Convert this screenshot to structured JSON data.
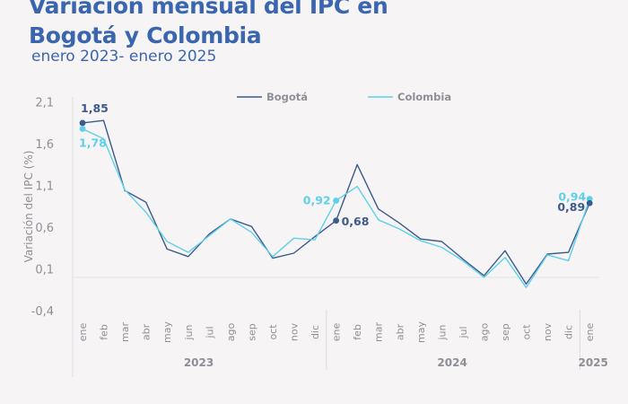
{
  "header": {
    "title_line1": "Variación mensual del IPC en",
    "title_line2": "Bogotá y Colombia",
    "subtitle": "enero 2023- enero 2025"
  },
  "colors": {
    "title": "#3a66b0",
    "bogota": "#3c5a8c",
    "colombia": "#5fd0ea",
    "axis_text": "#8e8f95"
  },
  "chart_data": {
    "type": "line",
    "title": "Variación mensual del IPC en Bogotá y Colombia",
    "subtitle": "enero 2023- enero 2025",
    "xlabel": "",
    "ylabel": "Variación del IPC (%)",
    "ylim": [
      -0.4,
      2.1
    ],
    "yticks": [
      "2,1",
      "1,6",
      "1,1",
      "0,6",
      "0,1",
      "-0,4"
    ],
    "ytick_values": [
      2.1,
      1.6,
      1.1,
      0.6,
      0.1,
      -0.4
    ],
    "grid": false,
    "legend_position": "top",
    "categories": [
      "ene",
      "feb",
      "mar",
      "abr",
      "may",
      "jun",
      "jul",
      "ago",
      "sep",
      "oct",
      "nov",
      "dic",
      "ene",
      "feb",
      "mar",
      "abr",
      "may",
      "jun",
      "jul",
      "ago",
      "sep",
      "oct",
      "nov",
      "dic",
      "ene"
    ],
    "year_groups": [
      {
        "label": "2023",
        "start": 0,
        "end": 11
      },
      {
        "label": "2024",
        "start": 12,
        "end": 23
      },
      {
        "label": "2025",
        "start": 24,
        "end": 24
      }
    ],
    "series": [
      {
        "name": "Bogotá",
        "color": "#3c5a8c",
        "values": [
          1.85,
          1.88,
          1.04,
          0.9,
          0.34,
          0.25,
          0.52,
          0.7,
          0.61,
          0.23,
          0.29,
          0.49,
          0.68,
          1.35,
          0.82,
          0.65,
          0.46,
          0.43,
          0.22,
          0.02,
          0.32,
          -0.08,
          0.28,
          0.3,
          0.89
        ]
      },
      {
        "name": "Colombia",
        "color": "#5fd0ea",
        "values": [
          1.78,
          1.66,
          1.05,
          0.78,
          0.43,
          0.3,
          0.5,
          0.7,
          0.54,
          0.25,
          0.47,
          0.45,
          0.92,
          1.09,
          0.69,
          0.58,
          0.44,
          0.36,
          0.2,
          0.0,
          0.24,
          -0.12,
          0.27,
          0.2,
          0.94
        ]
      }
    ],
    "annotations": [
      {
        "series": "Bogotá",
        "index": 0,
        "text": "1,85"
      },
      {
        "series": "Colombia",
        "index": 0,
        "text": "1,78"
      },
      {
        "series": "Colombia",
        "index": 12,
        "text": "0,92"
      },
      {
        "series": "Bogotá",
        "index": 12,
        "text": "0,68"
      },
      {
        "series": "Colombia",
        "index": 24,
        "text": "0,94"
      },
      {
        "series": "Bogotá",
        "index": 24,
        "text": "0,89"
      }
    ]
  }
}
